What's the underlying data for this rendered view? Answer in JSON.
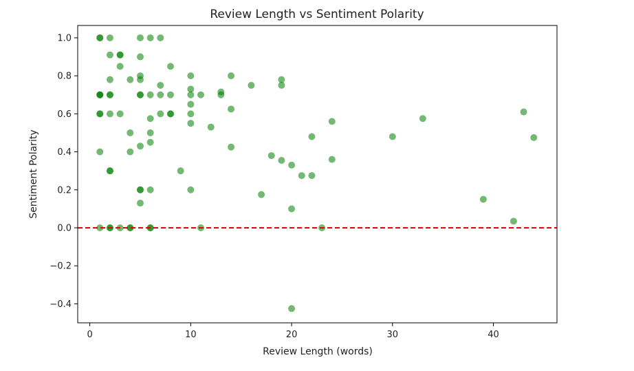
{
  "chart_data": {
    "type": "scatter",
    "title": "Review Length vs Sentiment Polarity",
    "xlabel": "Review Length (words)",
    "ylabel": "Sentiment Polarity",
    "xlim": [
      -1.2,
      46.3
    ],
    "ylim": [
      -0.5,
      1.065
    ],
    "xticks": [
      0,
      10,
      20,
      30,
      40
    ],
    "xtick_labels": [
      "0",
      "10",
      "20",
      "30",
      "40"
    ],
    "yticks": [
      -0.4,
      -0.2,
      0.0,
      0.2,
      0.4,
      0.6,
      0.8,
      1.0
    ],
    "ytick_labels": [
      "−0.4",
      "−0.2",
      "0.0",
      "0.2",
      "0.4",
      "0.6",
      "0.8",
      "1.0"
    ],
    "grid": false,
    "reference_line": {
      "y": 0.0,
      "color": "#e00000",
      "style": "dashed"
    },
    "marker_color": "#008000",
    "marker_alpha": 0.55,
    "points": [
      [
        1,
        1.0
      ],
      [
        1,
        1.0
      ],
      [
        1,
        0.7
      ],
      [
        1,
        0.7
      ],
      [
        1,
        0.7
      ],
      [
        1,
        0.6
      ],
      [
        1,
        0.6
      ],
      [
        1,
        0.4
      ],
      [
        1,
        0.0
      ],
      [
        2,
        1.0
      ],
      [
        2,
        0.91
      ],
      [
        2,
        0.78
      ],
      [
        2,
        0.7
      ],
      [
        2,
        0.7
      ],
      [
        2,
        0.6
      ],
      [
        2,
        0.3
      ],
      [
        2,
        0.3
      ],
      [
        2,
        0.0
      ],
      [
        2,
        0.0
      ],
      [
        3,
        0.91
      ],
      [
        3,
        0.91
      ],
      [
        3,
        0.85
      ],
      [
        3,
        0.6
      ],
      [
        3,
        0.0
      ],
      [
        4,
        0.78
      ],
      [
        4,
        0.5
      ],
      [
        4,
        0.4
      ],
      [
        4,
        0.0
      ],
      [
        4,
        0.0
      ],
      [
        5,
        1.0
      ],
      [
        5,
        0.9
      ],
      [
        5,
        0.8
      ],
      [
        5,
        0.78
      ],
      [
        5,
        0.7
      ],
      [
        5,
        0.7
      ],
      [
        5,
        0.43
      ],
      [
        5,
        0.2
      ],
      [
        5,
        0.2
      ],
      [
        5,
        0.13
      ],
      [
        6,
        1.0
      ],
      [
        6,
        0.7
      ],
      [
        6,
        0.575
      ],
      [
        6,
        0.5
      ],
      [
        6,
        0.45
      ],
      [
        6,
        0.2
      ],
      [
        6,
        0.0
      ],
      [
        6,
        0.0
      ],
      [
        7,
        1.0
      ],
      [
        7,
        0.75
      ],
      [
        7,
        0.7
      ],
      [
        7,
        0.6
      ],
      [
        8,
        0.85
      ],
      [
        8,
        0.7
      ],
      [
        8,
        0.6
      ],
      [
        8,
        0.6
      ],
      [
        9,
        0.3
      ],
      [
        10,
        0.8
      ],
      [
        10,
        0.73
      ],
      [
        10,
        0.7
      ],
      [
        10,
        0.65
      ],
      [
        10,
        0.6
      ],
      [
        10,
        0.55
      ],
      [
        10,
        0.2
      ],
      [
        11,
        0.7
      ],
      [
        11,
        0.0
      ],
      [
        12,
        0.53
      ],
      [
        13,
        0.715
      ],
      [
        13,
        0.7
      ],
      [
        14,
        0.8
      ],
      [
        14,
        0.625
      ],
      [
        14,
        0.425
      ],
      [
        16,
        0.75
      ],
      [
        17,
        0.175
      ],
      [
        18,
        0.38
      ],
      [
        19,
        0.78
      ],
      [
        19,
        0.75
      ],
      [
        19,
        0.355
      ],
      [
        20,
        0.33
      ],
      [
        20,
        0.1
      ],
      [
        20,
        -0.425
      ],
      [
        21,
        0.275
      ],
      [
        22,
        0.48
      ],
      [
        22,
        0.275
      ],
      [
        23,
        0.0
      ],
      [
        24,
        0.56
      ],
      [
        24,
        0.36
      ],
      [
        30,
        0.48
      ],
      [
        33,
        0.575
      ],
      [
        39,
        0.15
      ],
      [
        42,
        0.035
      ],
      [
        43,
        0.61
      ],
      [
        44,
        0.475
      ]
    ]
  }
}
